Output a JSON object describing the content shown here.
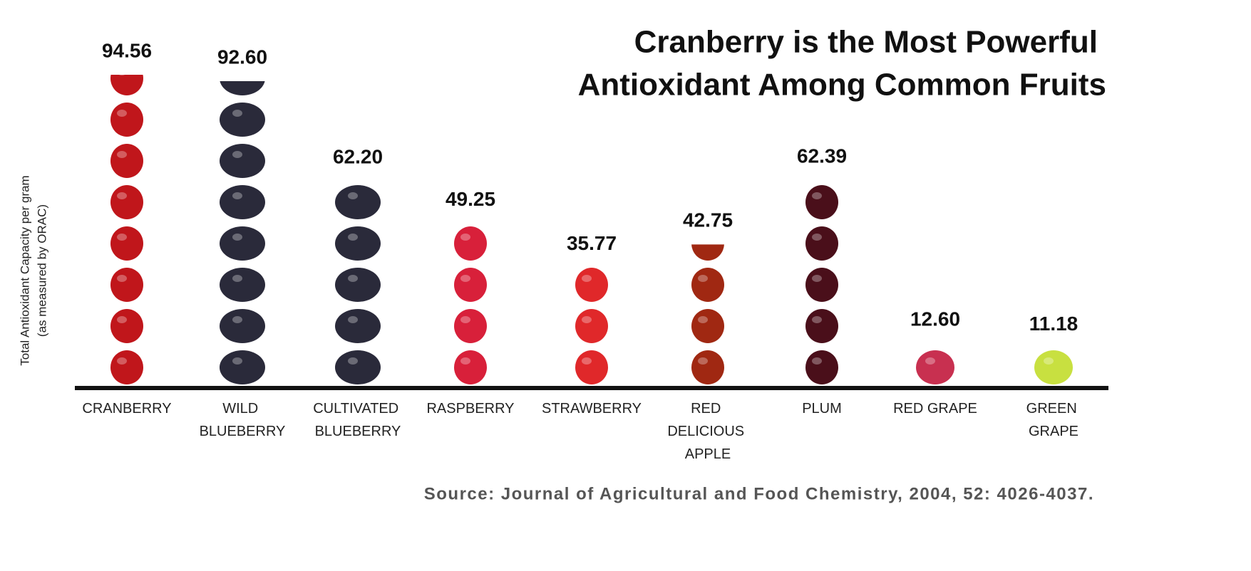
{
  "chart_data": {
    "type": "pictograph",
    "title": [
      "Cranberry is the Most Powerful",
      "Antioxidant Among Common Fruits"
    ],
    "y_label": [
      "Total Antioxidant Capacity per gram",
      "(as measured by ORAC)"
    ],
    "categories": [
      "CRANBERRY",
      "WILD BLUEBERRY",
      "CULTIVATED BLUEBERRY",
      "RASPBERRY",
      "STRAWBERRY",
      "RED DELICIOUS APPLE",
      "PLUM",
      "RED GRAPE",
      "GREEN GRAPE"
    ],
    "values": [
      94.56,
      92.6,
      62.2,
      49.25,
      35.77,
      42.75,
      62.39,
      12.6,
      11.18
    ],
    "value_labels": [
      "94.56",
      "92.60",
      "62.20",
      "49.25",
      "35.77",
      "42.75",
      "62.39",
      "12.60",
      "11.18"
    ],
    "colors": [
      "#c0161b",
      "#2a2a3a",
      "#2a2a3a",
      "#d8203a",
      "#e0282a",
      "#a02812",
      "#4a0f1a",
      "#c83050",
      "#c8e040"
    ],
    "source": "Source: Journal of Agricultural and Food Chemistry, 2004, 52: 4026-4037."
  }
}
